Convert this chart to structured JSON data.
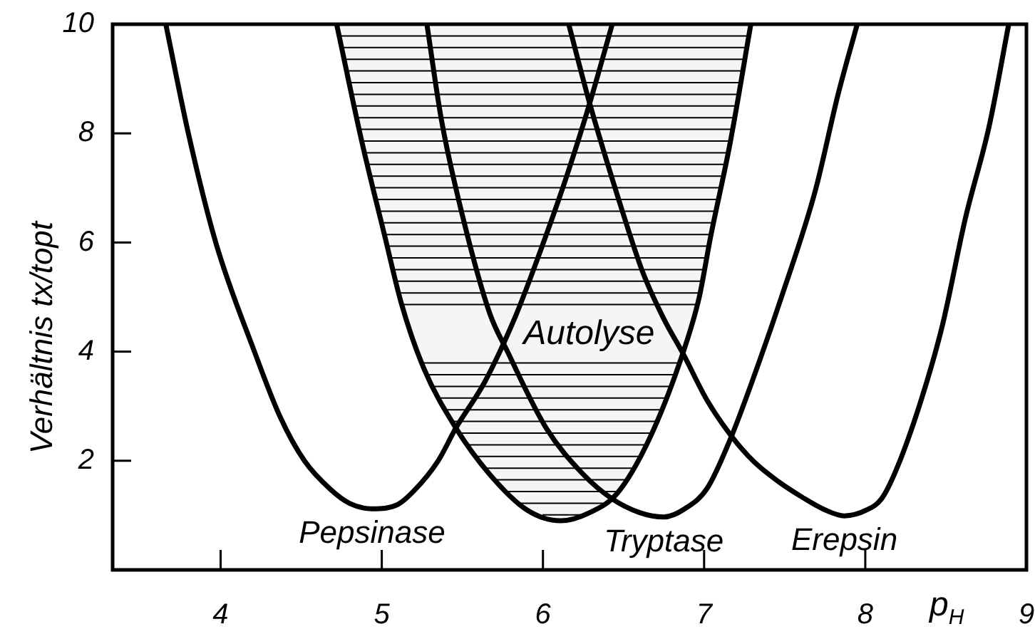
{
  "chart_data": {
    "type": "line",
    "xlabel": "p$_{H}$",
    "ylabel": "Verhältnis tx/topt",
    "xlim": [
      3.33,
      9
    ],
    "ylim": [
      0,
      10
    ],
    "xticks": [
      4,
      5,
      6,
      7,
      8,
      9
    ],
    "yticks": [
      2,
      4,
      6,
      8,
      10
    ],
    "series": [
      {
        "name": "Pepsinase",
        "color": "#000000",
        "x": [
          3.66,
          3.8,
          3.97,
          4.21,
          4.37,
          4.52,
          4.68,
          4.8,
          4.94,
          5.1,
          5.2,
          5.35,
          5.46,
          5.64,
          5.83,
          5.96,
          6.14,
          6.29,
          6.43
        ],
        "values": [
          10,
          8,
          6,
          4,
          2.8,
          2.0,
          1.48,
          1.22,
          1.12,
          1.2,
          1.45,
          2.0,
          2.6,
          3.45,
          4.65,
          5.65,
          7.15,
          8.55,
          10
        ]
      },
      {
        "name": "Autolyse",
        "type": "area",
        "color": "#000000",
        "x": [
          4.72,
          4.88,
          5.02,
          5.12,
          5.26,
          5.46,
          5.67,
          5.9,
          6.11,
          6.29,
          6.46,
          6.66,
          6.86,
          6.97,
          7.04,
          7.16,
          7.29
        ],
        "values": [
          10,
          7.8,
          6.1,
          4.9,
          3.7,
          2.6,
          1.75,
          1.1,
          0.9,
          1.05,
          1.4,
          2.4,
          3.9,
          5.0,
          6.1,
          7.8,
          10
        ]
      },
      {
        "name": "Tryptase",
        "color": "#000000",
        "x": [
          5.28,
          5.37,
          5.5,
          5.67,
          5.78,
          6.02,
          6.25,
          6.43,
          6.6,
          6.75,
          6.88,
          7.02,
          7.17,
          7.34,
          7.48,
          7.69,
          7.83,
          7.95
        ],
        "values": [
          10,
          8.25,
          6.5,
          4.7,
          4.0,
          2.6,
          1.75,
          1.3,
          1.05,
          0.97,
          1.12,
          1.5,
          2.45,
          3.8,
          5.0,
          6.95,
          8.7,
          10
        ]
      },
      {
        "name": "Erepsin",
        "color": "#000000",
        "x": [
          6.16,
          6.29,
          6.49,
          6.62,
          6.75,
          6.87,
          7.02,
          7.17,
          7.31,
          7.46,
          7.61,
          7.75,
          7.87,
          8.01,
          8.1,
          8.19,
          8.34,
          8.48,
          8.62,
          8.77,
          8.89
        ],
        "values": [
          10,
          8.55,
          6.6,
          5.45,
          4.6,
          3.96,
          3.1,
          2.45,
          1.98,
          1.62,
          1.33,
          1.1,
          0.99,
          1.1,
          1.3,
          1.82,
          3.05,
          4.5,
          6.43,
          8.15,
          10
        ]
      }
    ]
  }
}
